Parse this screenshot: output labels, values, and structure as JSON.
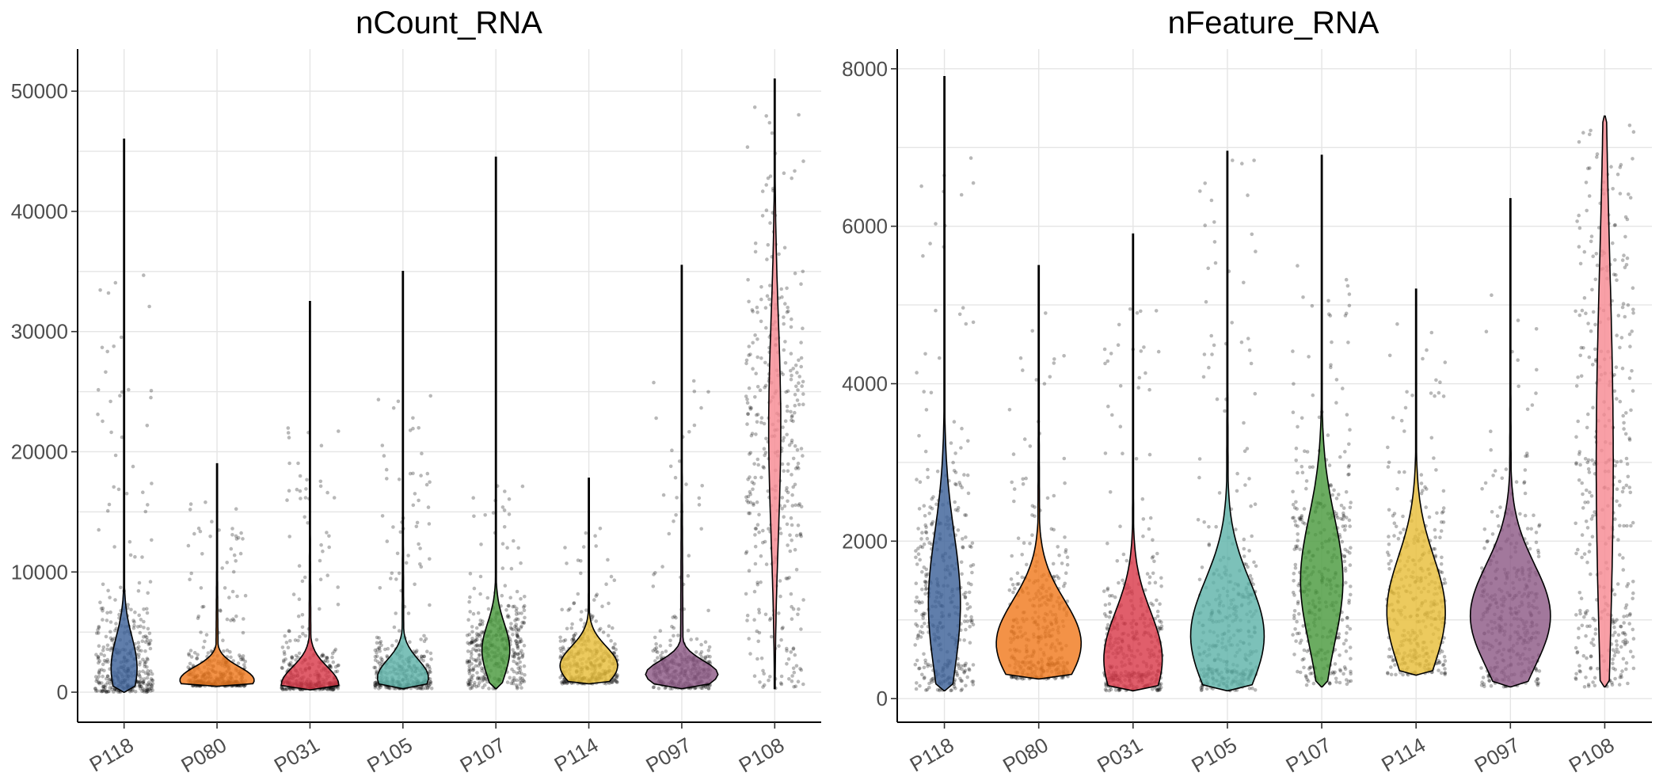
{
  "chart_data": [
    {
      "type": "violin",
      "title": "nCount_RNA",
      "xlabel": "",
      "ylabel": "",
      "ylim": [
        -2500,
        53500
      ],
      "yticks": [
        0,
        10000,
        20000,
        30000,
        40000,
        50000
      ],
      "grid": true,
      "legend": "none",
      "categories": [
        "P118",
        "P080",
        "P031",
        "P105",
        "P107",
        "P114",
        "P097",
        "P108"
      ],
      "colors": [
        "#3D6199",
        "#F07A1F",
        "#D93B4A",
        "#5FB3AA",
        "#4A9A3E",
        "#E8BE3A",
        "#8E5A86",
        "#F68A92"
      ],
      "series": [
        {
          "min": 0,
          "max": 46000,
          "peak": 2000,
          "spread": 2600,
          "width": 0.28,
          "points_hi": 35000
        },
        {
          "min": 500,
          "max": 19000,
          "peak": 1000,
          "spread": 1100,
          "width": 0.8,
          "points_hi": 16000
        },
        {
          "min": 200,
          "max": 32500,
          "peak": 600,
          "spread": 1500,
          "width": 0.62,
          "points_hi": 22000
        },
        {
          "min": 300,
          "max": 35000,
          "peak": 1200,
          "spread": 1500,
          "width": 0.55,
          "points_hi": 26000
        },
        {
          "min": 300,
          "max": 44500,
          "peak": 3500,
          "spread": 2200,
          "width": 0.3,
          "points_hi": 18000
        },
        {
          "min": 700,
          "max": 17800,
          "peak": 2200,
          "spread": 1600,
          "width": 0.62,
          "points_hi": 14000
        },
        {
          "min": 300,
          "max": 35500,
          "peak": 1500,
          "spread": 1100,
          "width": 0.78,
          "points_hi": 26000
        },
        {
          "min": 300,
          "max": 51000,
          "peak": 22000,
          "spread": 9000,
          "width": 0.13,
          "points_hi": 49000
        }
      ]
    },
    {
      "type": "violin",
      "title": "nFeature_RNA",
      "xlabel": "",
      "ylabel": "",
      "ylim": [
        -300,
        8250
      ],
      "yticks": [
        0,
        2000,
        4000,
        6000,
        8000
      ],
      "grid": true,
      "legend": "none",
      "categories": [
        "P118",
        "P080",
        "P031",
        "P105",
        "P107",
        "P114",
        "P097",
        "P108"
      ],
      "colors": [
        "#3D6199",
        "#F07A1F",
        "#D93B4A",
        "#5FB3AA",
        "#4A9A3E",
        "#E8BE3A",
        "#8E5A86",
        "#F68A92"
      ],
      "series": [
        {
          "min": 100,
          "max": 7900,
          "peak": 1200,
          "spread": 900,
          "width": 0.34,
          "points_hi": 7200
        },
        {
          "min": 250,
          "max": 5500,
          "peak": 700,
          "spread": 550,
          "width": 0.9,
          "points_hi": 5000
        },
        {
          "min": 100,
          "max": 5900,
          "peak": 500,
          "spread": 600,
          "width": 0.62,
          "points_hi": 5000
        },
        {
          "min": 100,
          "max": 6950,
          "peak": 800,
          "spread": 700,
          "width": 0.78,
          "points_hi": 6900
        },
        {
          "min": 150,
          "max": 6900,
          "peak": 1500,
          "spread": 800,
          "width": 0.45,
          "points_hi": 5500
        },
        {
          "min": 300,
          "max": 5200,
          "peak": 1100,
          "spread": 700,
          "width": 0.62,
          "points_hi": 4800
        },
        {
          "min": 150,
          "max": 6350,
          "peak": 1050,
          "spread": 650,
          "width": 0.85,
          "points_hi": 5400
        },
        {
          "min": 150,
          "max": 7400,
          "peak": 3000,
          "spread": 2500,
          "width": 0.18,
          "points_hi": 7300
        }
      ]
    }
  ]
}
